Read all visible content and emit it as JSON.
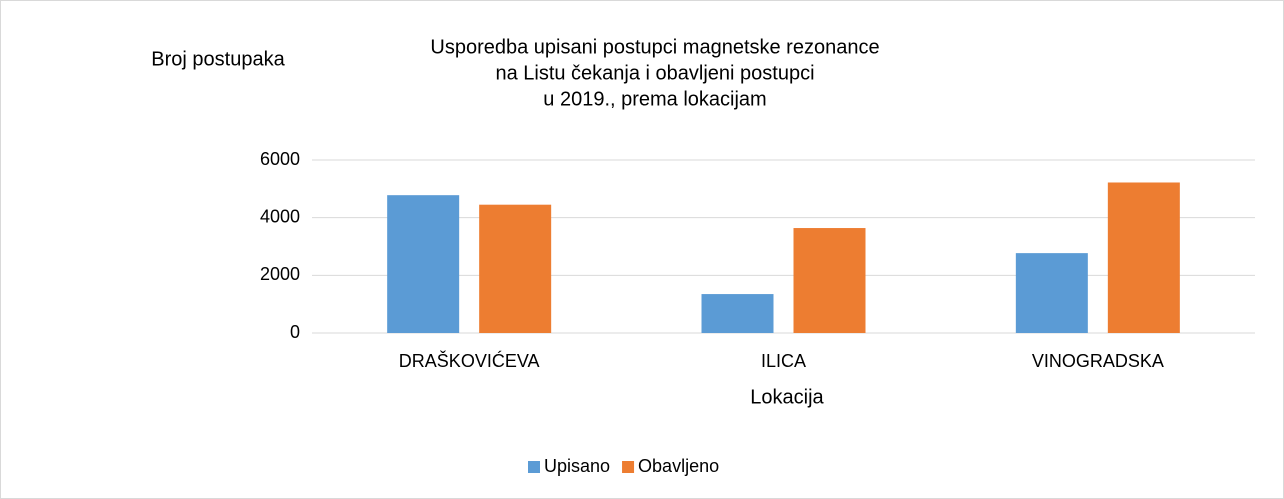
{
  "chart_data": {
    "type": "bar",
    "title": [
      "Usporedba upisani postupci magnetske rezonance",
      "na Listu čekanja i obavljeni postupci",
      "u 2019., prema lokacijam"
    ],
    "y_label": "Broj postupaka",
    "x_label": "Lokacija",
    "categories": [
      "DRAŠKOVIĆEVA",
      "ILICA",
      "VINOGRADSKA"
    ],
    "series": [
      {
        "name": "Upisano",
        "color": "#5b9bd5",
        "values": [
          4780,
          1350,
          2770
        ]
      },
      {
        "name": "Obavljeno",
        "color": "#ed7d31",
        "values": [
          4450,
          3640,
          5220
        ]
      }
    ],
    "ylim": [
      0,
      6000
    ],
    "yticks": [
      0,
      2000,
      4000,
      6000
    ],
    "grid": true,
    "legend": "bottom"
  }
}
